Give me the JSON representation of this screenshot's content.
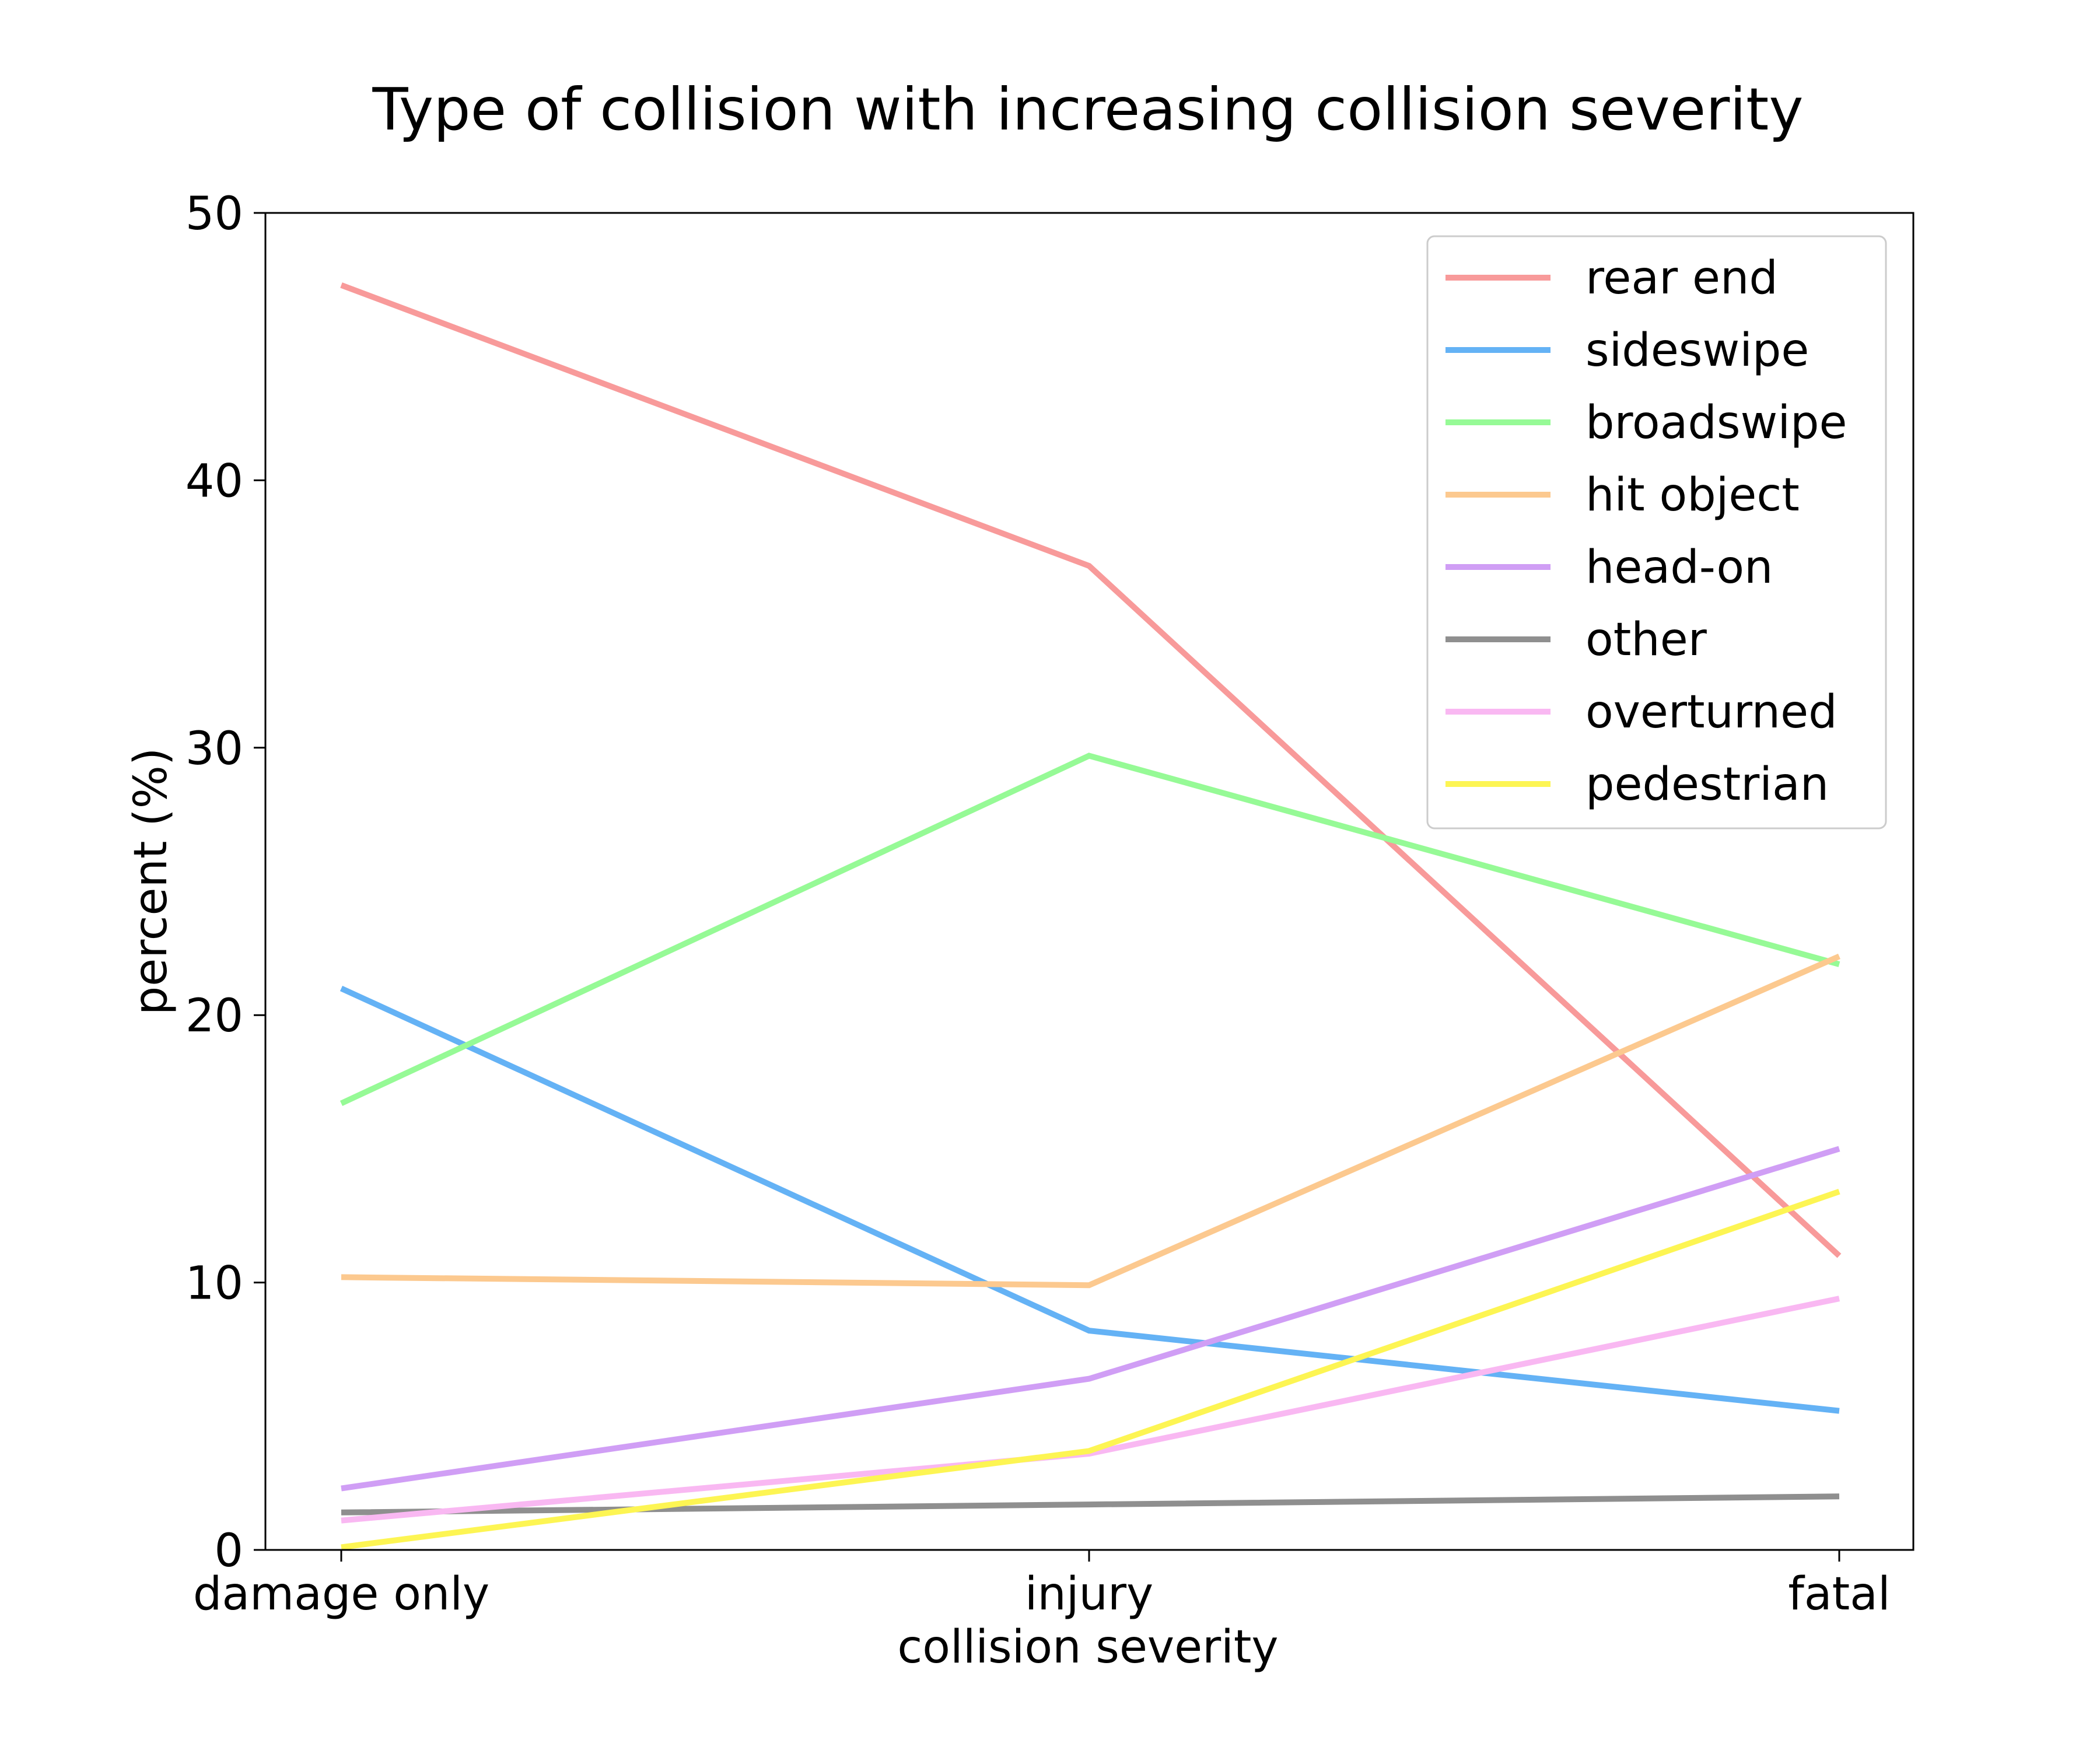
{
  "chart_data": {
    "type": "line",
    "title": "Type of collision with increasing collision severity",
    "xlabel": "collision severity",
    "ylabel": "percent (%)",
    "categories": [
      "damage only",
      "injury",
      "fatal"
    ],
    "ylim": [
      0,
      50
    ],
    "yticks": [
      0,
      10,
      20,
      30,
      40,
      50
    ],
    "grid": false,
    "legend_position": "top-right",
    "series": [
      {
        "name": "rear end",
        "color": "#f89a9a",
        "values": [
          47.3,
          36.8,
          11.0
        ]
      },
      {
        "name": "sideswipe",
        "color": "#64b2f5",
        "values": [
          21.0,
          8.2,
          5.2
        ]
      },
      {
        "name": "broadswipe",
        "color": "#96fa96",
        "values": [
          16.7,
          29.7,
          21.9
        ]
      },
      {
        "name": "hit object",
        "color": "#fcc98f",
        "values": [
          10.2,
          9.9,
          22.2
        ]
      },
      {
        "name": "head-on",
        "color": "#d09ef5",
        "values": [
          2.3,
          6.4,
          15.0
        ]
      },
      {
        "name": "other",
        "color": "#8f8f8f",
        "values": [
          1.4,
          1.7,
          2.0
        ]
      },
      {
        "name": "overturned",
        "color": "#f9b8f2",
        "values": [
          1.1,
          3.6,
          9.4
        ]
      },
      {
        "name": "pedestrian",
        "color": "#fdf553",
        "values": [
          0.1,
          3.7,
          13.4
        ]
      }
    ]
  }
}
